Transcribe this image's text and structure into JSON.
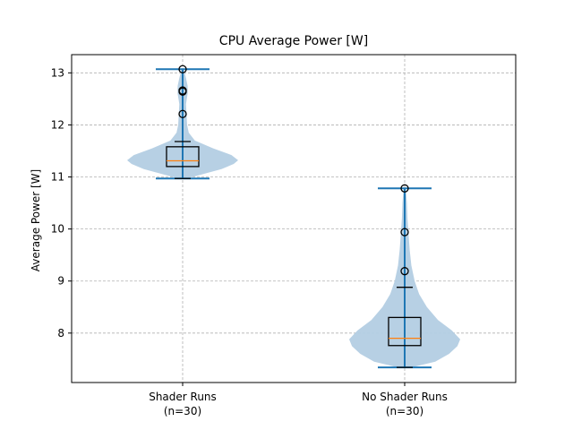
{
  "chart_data": {
    "type": "violin",
    "title": "CPU Average Power [W]",
    "ylabel": "Average Power [W]",
    "xlabel": "",
    "ylim": [
      7.05,
      13.35
    ],
    "yticks": [
      8,
      9,
      10,
      11,
      12,
      13
    ],
    "grid": true,
    "categories": [
      {
        "label": "Shader Runs",
        "sublabel": "(n=30)"
      },
      {
        "label": "No Shader Runs",
        "sublabel": "(n=30)"
      }
    ],
    "series": [
      {
        "category": "Shader Runs",
        "min": 10.97,
        "max": 13.07,
        "box": {
          "q1": 11.2,
          "median": 11.31,
          "q3": 11.58
        },
        "whiskers": {
          "low": 10.97,
          "high": 11.68
        },
        "outliers": [
          12.21,
          12.64,
          12.66,
          13.07
        ],
        "density_profile": [
          [
            10.97,
            0.08
          ],
          [
            11.05,
            0.35
          ],
          [
            11.15,
            0.7
          ],
          [
            11.25,
            0.92
          ],
          [
            11.32,
            1.0
          ],
          [
            11.42,
            0.88
          ],
          [
            11.55,
            0.55
          ],
          [
            11.7,
            0.22
          ],
          [
            11.85,
            0.11
          ],
          [
            12.0,
            0.08
          ],
          [
            12.2,
            0.07
          ],
          [
            12.4,
            0.06
          ],
          [
            12.6,
            0.09
          ],
          [
            12.75,
            0.09
          ],
          [
            12.9,
            0.06
          ],
          [
            13.07,
            0.02
          ]
        ]
      },
      {
        "category": "No Shader Runs",
        "min": 7.34,
        "max": 10.78,
        "box": {
          "q1": 7.76,
          "median": 7.9,
          "q3": 8.3
        },
        "whiskers": {
          "low": 7.34,
          "high": 8.88
        },
        "outliers": [
          9.19,
          9.94,
          10.78
        ],
        "density_profile": [
          [
            7.34,
            0.12
          ],
          [
            7.45,
            0.55
          ],
          [
            7.6,
            0.8
          ],
          [
            7.75,
            0.95
          ],
          [
            7.88,
            1.0
          ],
          [
            8.05,
            0.85
          ],
          [
            8.25,
            0.6
          ],
          [
            8.5,
            0.4
          ],
          [
            8.75,
            0.26
          ],
          [
            9.0,
            0.18
          ],
          [
            9.3,
            0.12
          ],
          [
            9.6,
            0.09
          ],
          [
            9.9,
            0.07
          ],
          [
            10.2,
            0.05
          ],
          [
            10.5,
            0.04
          ],
          [
            10.78,
            0.02
          ]
        ]
      }
    ],
    "colors": {
      "violin_fill": "#b3cde3",
      "violin_lines": "#1f77b4",
      "median": "#ff7f0e",
      "box": "#000000",
      "grid": "#b0b0b0"
    }
  }
}
